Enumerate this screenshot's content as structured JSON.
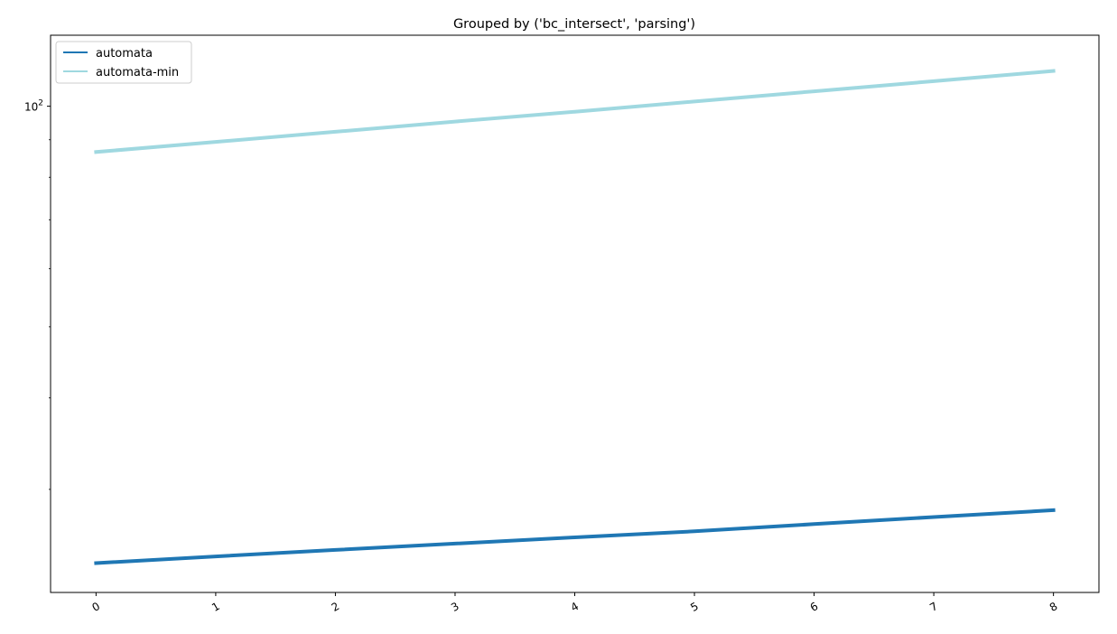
{
  "chart_data": {
    "type": "line",
    "title": "Grouped by ('bc_intersect', 'parsing')",
    "xlabel": "",
    "ylabel": "",
    "x": [
      0,
      1,
      2,
      3,
      4,
      5,
      6,
      7,
      8
    ],
    "x_tick_labels": [
      "0",
      "1",
      "2",
      "3",
      "4",
      "5",
      "6",
      "7",
      "8"
    ],
    "y_scale": "log",
    "y_tick_label": {
      "base": "10",
      "exponent": "2"
    },
    "y_tick_value": 100,
    "ylim": [
      21.7,
      125
    ],
    "series": [
      {
        "name": "automata",
        "color": "#1f77b4",
        "values": [
          23.8,
          24.3,
          24.8,
          25.3,
          25.8,
          26.3,
          26.9,
          27.5,
          28.1
        ]
      },
      {
        "name": "automata-min",
        "color": "#9fd8e0",
        "values": [
          86.6,
          89.4,
          92.3,
          95.3,
          98.3,
          101.5,
          104.8,
          108.2,
          111.7
        ]
      }
    ],
    "legend_position": "top-left",
    "grid": false
  }
}
